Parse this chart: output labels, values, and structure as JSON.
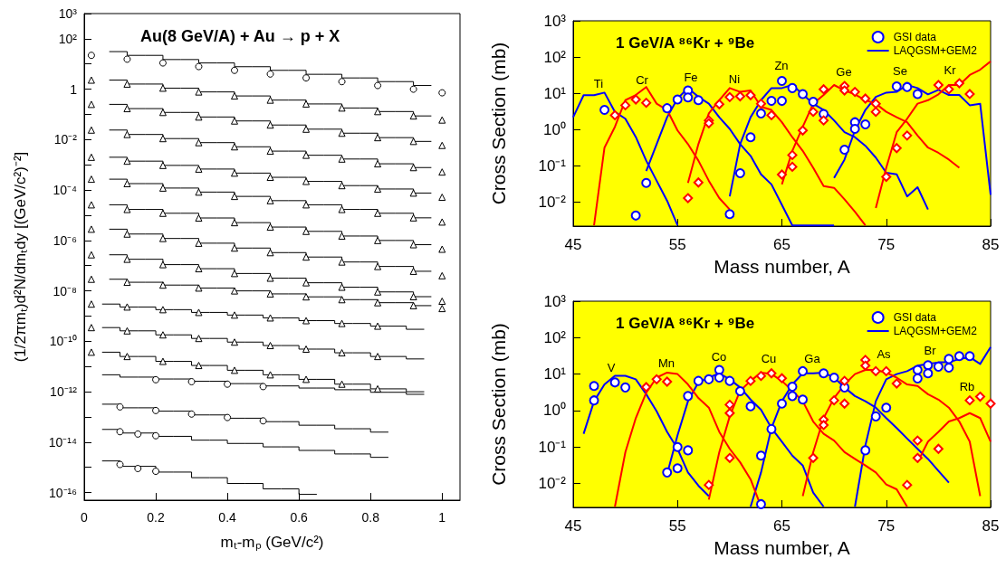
{
  "chart_data": [
    {
      "type": "scatter",
      "title": "Au(8 GeV/A) + Au → p + X",
      "xlabel": "mₜ-mₚ (GeV/c²)",
      "ylabel": "(1/2πmₜ)d²N/dmₜdy [(GeV/c²)⁻²]",
      "log": "y",
      "grid": false,
      "legend": false,
      "xlim": [
        0,
        1.05
      ],
      "xticks": [
        0,
        0.2,
        0.4,
        0.6,
        0.8,
        1
      ],
      "ylim": [
        5e-17,
        1000
      ],
      "yticks": [
        {
          "value": 1000,
          "label": "10³"
        },
        {
          "value": 100,
          "label": "10²"
        },
        {
          "value": 10,
          "label": null
        },
        {
          "value": 1,
          "label": "1"
        },
        {
          "value": 0.1,
          "label": null
        },
        {
          "value": 0.01,
          "label": "10⁻²"
        },
        {
          "value": 0.001,
          "label": null
        },
        {
          "value": 0.0001,
          "label": "10⁻⁴"
        },
        {
          "value": 1e-05,
          "label": null
        },
        {
          "value": 1e-06,
          "label": "10⁻⁶"
        },
        {
          "value": 1e-07,
          "label": null
        },
        {
          "value": 1e-08,
          "label": "10⁻⁸"
        },
        {
          "value": 1e-09,
          "label": null
        },
        {
          "value": 1e-10,
          "label": "10⁻¹⁰"
        },
        {
          "value": 1e-11,
          "label": null
        },
        {
          "value": 1e-12,
          "label": "10⁻¹²"
        },
        {
          "value": 1e-13,
          "label": null
        },
        {
          "value": 1e-14,
          "label": "10⁻¹⁴"
        },
        {
          "value": 1e-15,
          "label": null
        },
        {
          "value": 1e-16,
          "label": "10⁻¹⁶"
        }
      ],
      "x": [
        0.02,
        0.12,
        0.22,
        0.32,
        0.42,
        0.52,
        0.62,
        0.72,
        0.82,
        0.92,
        1.0
      ],
      "series": [
        {
          "marker": "circle",
          "color": "#000000",
          "values": [
            22,
            15.5,
            11,
            7.9,
            5.6,
            4,
            2.8,
            2,
            1.4,
            1,
            0.72
          ]
        },
        {
          "marker": "triangle",
          "color": "#000000",
          "values": [
            2.3,
            1.6,
            1.1,
            0.78,
            0.54,
            0.37,
            0.26,
            0.18,
            0.13,
            0.087,
            0.06
          ]
        },
        {
          "marker": "triangle",
          "color": "#000000",
          "values": [
            0.25,
            0.17,
            0.12,
            0.079,
            0.055,
            0.038,
            0.026,
            0.018,
            0.012,
            0.0085,
            0.0059
          ]
        },
        {
          "marker": "triangle",
          "color": "#000000",
          "values": [
            0.024,
            0.016,
            0.011,
            0.0076,
            0.0052,
            0.0035,
            0.0024,
            0.0017,
            0.0011,
            0.00078,
            0.00052
          ]
        },
        {
          "marker": "triangle",
          "color": "#000000",
          "values": [
            0.002,
            0.0014,
            0.00095,
            0.00068,
            0.00047,
            0.00032,
            0.00022,
            0.00015,
            0.00011,
            7.6e-05,
            5.2e-05
          ]
        },
        {
          "marker": "triangle",
          "color": "#000000",
          "values": [
            0.00027,
            0.00018,
            0.00012,
            8.3e-05,
            5.6e-05,
            3.8e-05,
            2.6e-05,
            1.7e-05,
            1.2e-05,
            7.9e-06,
            5.4e-06
          ]
        },
        {
          "marker": "triangle",
          "color": "#000000",
          "values": [
            2.6e-05,
            1.7e-05,
            1.2e-05,
            7.8e-06,
            5.1e-06,
            3.4e-06,
            2.3e-06,
            1.5e-06,
            1e-06,
            6.8e-07,
            4.5e-07
          ]
        },
        {
          "marker": "triangle",
          "color": "#000000",
          "values": [
            2.8e-06,
            1.8e-06,
            1.2e-06,
            7.8e-07,
            5e-07,
            3.3e-07,
            2.2e-07,
            1.4e-07,
            9.3e-08,
            6e-08,
            4e-08
          ]
        },
        {
          "marker": "triangle",
          "color": "#000000",
          "values": [
            2.7e-07,
            1.8e-07,
            1.1e-07,
            7.6e-08,
            4.9e-08,
            3.2e-08,
            2.1e-08,
            1.4e-08,
            9.1e-09,
            5.9e-09,
            3.9e-09
          ]
        },
        {
          "marker": "triangle",
          "color": "#000000",
          "values": [
            2.9e-08,
            2.2e-08,
            1.7e-08,
            1.3e-08,
            1e-08,
            7.6e-09,
            5.8e-09,
            4.5e-09,
            3.4e-09,
            2.6e-09,
            2e-09
          ]
        },
        {
          "marker": "triangle",
          "color": "#000000",
          "x": [
            0.02,
            0.12,
            0.22,
            0.32,
            0.42,
            0.52,
            0.62,
            0.72,
            0.82
          ],
          "values": [
            3e-09,
            2.3e-09,
            1.8e-09,
            1.4e-09,
            1.1e-09,
            8.5e-10,
            6.6e-10,
            5.1e-10,
            4e-10
          ]
        },
        {
          "marker": "triangle",
          "color": "#000000",
          "x": [
            0.02,
            0.12,
            0.22,
            0.32,
            0.42,
            0.52,
            0.62,
            0.72,
            0.82
          ],
          "values": [
            3.5e-10,
            2.6e-10,
            1.8e-10,
            1.3e-10,
            9.3e-11,
            6.8e-11,
            4.9e-11,
            3.5e-11,
            2.5e-11
          ]
        },
        {
          "marker": "triangle",
          "color": "#000000",
          "x": [
            0.02,
            0.12,
            0.22,
            0.32,
            0.42,
            0.52,
            0.62,
            0.72,
            0.82
          ],
          "values": [
            3.7e-11,
            2.5e-11,
            1.6e-11,
            1.1e-11,
            7.1e-12,
            4.7e-12,
            3.1e-12,
            2e-12,
            1.3e-12
          ]
        },
        {
          "marker": "circle",
          "color": "#000000",
          "x": [
            0.2,
            0.3,
            0.4,
            0.5
          ],
          "values": [
            3e-12,
            2.5e-12,
            2e-12,
            1.6e-12
          ]
        },
        {
          "marker": "circle",
          "color": "#000000",
          "x": [
            0.1,
            0.2,
            0.3,
            0.4,
            0.5
          ],
          "values": [
            2.5e-13,
            1.8e-13,
            1.3e-13,
            9.5e-14,
            7e-14
          ]
        },
        {
          "marker": "circle",
          "color": "#000000",
          "x": [
            0.1,
            0.15,
            0.2
          ],
          "values": [
            2.6e-14,
            2.1e-14,
            1.8e-14
          ]
        },
        {
          "marker": "circle",
          "color": "#000000",
          "x": [
            0.1,
            0.15,
            0.2
          ],
          "values": [
            1.3e-15,
            9e-16,
            7e-16
          ]
        },
        {
          "type": "step",
          "color": "#000000",
          "x": [
            0.07,
            0.17,
            0.27,
            0.37,
            0.47,
            0.57,
            0.67,
            0.77,
            0.87,
            0.97
          ],
          "values": [
            31,
            22,
            15,
            11,
            7.8,
            5.6,
            3.9,
            2.8,
            2,
            1.4
          ]
        },
        {
          "type": "step",
          "color": "#000000",
          "x": [
            0.07,
            0.17,
            0.27,
            0.37,
            0.47,
            0.57,
            0.67,
            0.77,
            0.87,
            0.97
          ],
          "values": [
            2.3,
            1.6,
            1.1,
            0.78,
            0.54,
            0.37,
            0.26,
            0.18,
            0.13,
            0.087
          ]
        },
        {
          "type": "step",
          "color": "#000000",
          "x": [
            0.07,
            0.17,
            0.27,
            0.37,
            0.47,
            0.57,
            0.67,
            0.77,
            0.87,
            0.97
          ],
          "values": [
            0.25,
            0.17,
            0.12,
            0.079,
            0.055,
            0.038,
            0.026,
            0.018,
            0.012,
            0.0085
          ]
        },
        {
          "type": "step",
          "color": "#000000",
          "x": [
            0.07,
            0.17,
            0.27,
            0.37,
            0.47,
            0.57,
            0.67,
            0.77,
            0.87,
            0.97
          ],
          "values": [
            0.024,
            0.016,
            0.011,
            0.0076,
            0.0052,
            0.0035,
            0.0024,
            0.0017,
            0.0011,
            0.00078
          ]
        },
        {
          "type": "step",
          "color": "#000000",
          "x": [
            0.07,
            0.17,
            0.27,
            0.37,
            0.47,
            0.57,
            0.67,
            0.77,
            0.87,
            0.97
          ],
          "values": [
            0.002,
            0.0014,
            0.00095,
            0.00068,
            0.00047,
            0.00032,
            0.00022,
            0.00015,
            0.00011,
            7.6e-05
          ]
        },
        {
          "type": "step",
          "color": "#000000",
          "x": [
            0.07,
            0.17,
            0.27,
            0.37,
            0.47,
            0.57,
            0.67,
            0.77,
            0.87,
            0.97
          ],
          "values": [
            0.00027,
            0.00018,
            0.00012,
            8.3e-05,
            5.6e-05,
            3.8e-05,
            2.6e-05,
            1.7e-05,
            1.2e-05,
            7.9e-06
          ]
        },
        {
          "type": "step",
          "color": "#000000",
          "x": [
            0.07,
            0.17,
            0.27,
            0.37,
            0.47,
            0.57,
            0.67,
            0.77,
            0.87,
            0.97
          ],
          "values": [
            2.6e-05,
            1.7e-05,
            1.2e-05,
            7.8e-06,
            5.1e-06,
            3.4e-06,
            2.3e-06,
            1.5e-06,
            1e-06,
            6.8e-07
          ]
        },
        {
          "type": "step",
          "color": "#000000",
          "x": [
            0.07,
            0.17,
            0.27,
            0.37,
            0.47,
            0.57,
            0.67,
            0.77,
            0.87,
            0.97
          ],
          "values": [
            2.8e-06,
            1.8e-06,
            1.2e-06,
            7.8e-07,
            5e-07,
            3.3e-07,
            2.2e-07,
            1.4e-07,
            9.3e-08,
            6e-08
          ]
        },
        {
          "type": "step",
          "color": "#000000",
          "x": [
            0.07,
            0.17,
            0.27,
            0.37,
            0.47,
            0.57,
            0.67,
            0.77,
            0.87,
            0.97
          ],
          "values": [
            2.7e-07,
            1.8e-07,
            1.1e-07,
            7.6e-08,
            4.9e-08,
            3.2e-08,
            2.1e-08,
            1.4e-08,
            9.1e-09,
            5.9e-09
          ]
        },
        {
          "type": "step",
          "color": "#000000",
          "x": [
            0.07,
            0.17,
            0.27,
            0.37,
            0.47,
            0.57,
            0.67,
            0.77,
            0.87,
            0.97
          ],
          "values": [
            2.9e-08,
            2.2e-08,
            1.7e-08,
            1.3e-08,
            1e-08,
            7.6e-09,
            5.8e-09,
            4.5e-09,
            3.4e-09,
            2.6e-09
          ]
        },
        {
          "type": "step",
          "color": "#000000",
          "x": [
            0.05,
            0.15,
            0.25,
            0.35,
            0.45,
            0.55,
            0.65,
            0.75,
            0.85,
            0.95
          ],
          "values": [
            3e-09,
            2.3e-09,
            1.8e-09,
            1.4e-09,
            1.1e-09,
            8.5e-10,
            6.6e-10,
            5.1e-10,
            4e-10,
            3e-10
          ]
        },
        {
          "type": "step",
          "color": "#000000",
          "x": [
            0.05,
            0.15,
            0.25,
            0.35,
            0.45,
            0.55,
            0.65,
            0.75,
            0.85,
            0.95
          ],
          "values": [
            3.5e-10,
            2.6e-10,
            1.8e-10,
            1.3e-10,
            9.3e-11,
            6.8e-11,
            4.9e-11,
            3.5e-11,
            2.5e-11,
            2e-11
          ]
        },
        {
          "type": "step",
          "color": "#000000",
          "x": [
            0.05,
            0.15,
            0.25,
            0.35,
            0.45,
            0.55,
            0.65,
            0.75,
            0.85,
            0.95
          ],
          "values": [
            3.7e-11,
            2.5e-11,
            1.6e-11,
            1.1e-11,
            7.1e-12,
            4.7e-12,
            3.1e-12,
            2e-12,
            1.3e-12,
            1e-12
          ]
        },
        {
          "type": "step",
          "color": "#000000",
          "x": [
            0.05,
            0.15,
            0.25,
            0.35,
            0.45,
            0.55,
            0.65,
            0.75,
            0.85,
            0.95
          ],
          "values": [
            4.7e-12,
            3.8e-12,
            3.2e-12,
            2.6e-12,
            2.1e-12,
            1.7e-12,
            1.4e-12,
            1.2e-12,
            9.5e-13,
            7.9e-13
          ]
        },
        {
          "type": "step",
          "color": "#000000",
          "x": [
            0.05,
            0.15,
            0.25,
            0.35,
            0.45,
            0.55,
            0.65,
            0.75,
            0.85
          ],
          "values": [
            3.2e-13,
            2.3e-13,
            1.7e-13,
            1.2e-13,
            8.9e-14,
            6.5e-14,
            4.7e-14,
            3.4e-14,
            2.5e-14
          ]
        },
        {
          "type": "step",
          "color": "#000000",
          "x": [
            0.05,
            0.15,
            0.25,
            0.35,
            0.45,
            0.55,
            0.65,
            0.75,
            0.85
          ],
          "values": [
            3.2e-14,
            2.3e-14,
            1.7e-14,
            1.2e-14,
            8.9e-15,
            6.5e-15,
            4.7e-15,
            3.4e-15,
            2.5e-15
          ]
        },
        {
          "type": "step",
          "color": "#000000",
          "x": [
            0.05,
            0.15,
            0.25,
            0.35,
            0.45,
            0.55,
            0.65
          ],
          "values": [
            1.8e-15,
            1.1e-15,
            6.5e-16,
            3.9e-16,
            2.3e-16,
            1.4e-16,
            8.5e-17
          ]
        }
      ]
    },
    {
      "type": "line",
      "title": "1 GeV/A ⁸⁶Kr + ⁹Be",
      "xlabel": "Mass number, A",
      "ylabel": "Cross Section (mb)",
      "log": "y",
      "grid": false,
      "legend": "top right",
      "xlim": [
        45,
        85
      ],
      "xticks": [
        45,
        55,
        65,
        75,
        85
      ],
      "ylim": [
        0.0022,
        1000
      ],
      "yticks": [
        {
          "value": 0.01,
          "label": "10⁻²"
        },
        {
          "value": 0.1,
          "label": "10⁻¹"
        },
        {
          "value": 1,
          "label": "10⁰"
        },
        {
          "value": 10,
          "label": "10¹"
        },
        {
          "value": 100,
          "label": "10²"
        },
        {
          "value": 1000,
          "label": "10³"
        }
      ],
      "annotations": [
        "Ti",
        "Cr",
        "Fe",
        "Ni",
        "Zn",
        "Ge",
        "Se",
        "Kr"
      ],
      "series": [
        {
          "type": "scatter",
          "name": "GSI data",
          "marker": "circle",
          "color": "#0000ff",
          "x": [
            48,
            51,
            52,
            54,
            55,
            56,
            56,
            57,
            60,
            61,
            62,
            63,
            64,
            65,
            65,
            66,
            67,
            68,
            69,
            71,
            72,
            72,
            73,
            76,
            77,
            78
          ],
          "values": [
            3.5,
            0.0043,
            0.034,
            3.9,
            6.8,
            12,
            7.7,
            6.5,
            0.0047,
            0.063,
            0.62,
            2.8,
            6.2,
            6.2,
            22,
            14,
            9.6,
            5.9,
            2.7,
            0.28,
            1.6,
            1.05,
            1.4,
            15.5,
            15,
            9.6
          ]
        },
        {
          "name": "LAQGSM+GEM2",
          "color": "#0000ff",
          "x": [
            45,
            46,
            47,
            48,
            49,
            50,
            51,
            52,
            53,
            54,
            55
          ],
          "values": [
            2.2,
            8.9,
            8.9,
            10.5,
            3.1,
            2.0,
            0.63,
            0.14,
            0.039,
            0.011,
            0.0023
          ]
        },
        {
          "color": "#0000ff",
          "x": [
            52,
            53,
            54,
            55,
            56,
            57,
            58,
            59,
            60,
            61,
            62,
            63,
            64,
            65,
            66,
            70
          ],
          "values": [
            0.072,
            0.4,
            2.2,
            7.2,
            14,
            8,
            5.2,
            2.2,
            1.05,
            0.4,
            0.19,
            0.059,
            0.031,
            0.0085,
            0.0023,
            0.0023
          ]
        },
        {
          "color": "#0000ff",
          "x": [
            60,
            61,
            62,
            63,
            64,
            65,
            66,
            67,
            68,
            69,
            70,
            71,
            72,
            73,
            74,
            75,
            76,
            77,
            78,
            79
          ],
          "values": [
            0.0145,
            0.4,
            2.2,
            6.5,
            14,
            14,
            17,
            9.4,
            5.2,
            3.5,
            1.8,
            0.85,
            0.62,
            0.36,
            0.17,
            0.065,
            0.059,
            0.0145,
            0.026,
            0.0063
          ]
        },
        {
          "color": "#0000ff",
          "x": [
            70,
            71,
            72,
            73,
            74,
            75,
            76,
            77,
            78,
            79,
            80,
            81,
            82,
            83,
            84,
            85
          ],
          "values": [
            0.047,
            0.15,
            0.95,
            3.5,
            8,
            10.5,
            11,
            17,
            14,
            9.4,
            12.5,
            9,
            9,
            4.7,
            5.2,
            0.016
          ]
        },
        {
          "color": "#ff0000",
          "x": [
            47,
            48,
            49,
            50,
            51,
            52,
            53,
            54,
            55,
            56,
            57,
            58,
            59,
            60
          ],
          "values": [
            0.0023,
            0.32,
            1.2,
            6.5,
            9,
            15,
            5.2,
            3.5,
            0.95,
            0.4,
            0.14,
            0.039,
            0.013,
            0.0063
          ]
        },
        {
          "color": "#ff0000",
          "x": [
            56,
            57,
            58,
            59,
            60,
            61,
            62,
            63,
            64,
            65,
            66,
            67,
            68,
            69,
            70,
            71,
            72,
            73
          ],
          "values": [
            0.034,
            0.4,
            2.8,
            6.5,
            14,
            11,
            12,
            4.3,
            3.5,
            1.6,
            0.62,
            0.26,
            0.089,
            0.028,
            0.025,
            0.012,
            0.0055,
            0.0023
          ]
        },
        {
          "color": "#ff0000",
          "x": [
            65,
            66,
            67,
            68,
            69,
            70,
            71,
            72,
            73,
            74,
            75,
            76,
            77,
            78,
            79,
            80,
            81,
            82
          ],
          "values": [
            0.031,
            0.26,
            1.2,
            5.2,
            9,
            17,
            12,
            9.4,
            6.5,
            5.2,
            3.1,
            2.2,
            1.6,
            0.69,
            0.32,
            0.23,
            0.15,
            0.089
          ]
        },
        {
          "color": "#ff0000",
          "x": [
            74,
            75,
            76,
            77,
            78,
            79,
            80,
            81,
            82,
            83,
            84,
            85
          ],
          "values": [
            0.0069,
            0.089,
            0.85,
            2.0,
            5.2,
            6.5,
            9.4,
            17,
            17,
            32,
            45,
            76
          ]
        },
        {
          "type": "scatter",
          "marker": "diamond",
          "color": "#ff0000",
          "x": [
            49,
            50,
            51,
            52,
            56,
            57,
            58,
            58,
            59,
            60,
            61,
            62,
            63,
            64,
            65,
            66,
            66,
            67,
            68,
            69,
            69,
            71,
            71,
            72,
            73,
            74,
            74,
            75,
            76,
            77,
            80,
            81,
            82,
            83
          ],
          "values": [
            2.5,
            4.7,
            6.8,
            5.5,
            0.013,
            0.035,
            1.8,
            1.5,
            5.0,
            7.9,
            8.3,
            8.9,
            5.2,
            2.5,
            0.058,
            0.2,
            0.095,
            0.95,
            3.1,
            13,
            1.8,
            16,
            12,
            11,
            7.2,
            5.2,
            3.1,
            0.05,
            0.31,
            0.69,
            17,
            13,
            19,
            9.6
          ]
        }
      ]
    },
    {
      "type": "line",
      "title": "1 GeV/A ⁸⁶Kr + ⁹Be",
      "xlabel": "Mass number, A",
      "ylabel": "Cross Section (mb)",
      "log": "y",
      "grid": false,
      "legend": "top right",
      "xlim": [
        45,
        85
      ],
      "xticks": [
        45,
        55,
        65,
        75,
        85
      ],
      "ylim": [
        0.0022,
        1000
      ],
      "yticks": [
        {
          "value": 0.01,
          "label": "10⁻²"
        },
        {
          "value": 0.1,
          "label": "10⁻¹"
        },
        {
          "value": 1,
          "label": "10⁰"
        },
        {
          "value": 10,
          "label": "10¹"
        },
        {
          "value": 100,
          "label": "10²"
        },
        {
          "value": 1000,
          "label": "10³"
        }
      ],
      "annotations": [
        "V",
        "Mn",
        "Co",
        "Cu",
        "Ga",
        "As",
        "Br",
        "Rb"
      ],
      "series": [
        {
          "type": "scatter",
          "name": "GSI data",
          "marker": "circle",
          "color": "#0000ff",
          "x": [
            47,
            47,
            49,
            50,
            54,
            55,
            55,
            56,
            56,
            57,
            58,
            59,
            59,
            60,
            61,
            62,
            63,
            63,
            64,
            65,
            66,
            66,
            67,
            67,
            69,
            70,
            71,
            73,
            74,
            75,
            78,
            78,
            79,
            79,
            80,
            81,
            81,
            82,
            83
          ],
          "values": [
            4.7,
            1.9,
            5.9,
            4.3,
            0.02,
            0.1,
            0.026,
            0.081,
            2.5,
            6.5,
            7.2,
            13,
            8,
            6.5,
            3.4,
            1.3,
            0.0027,
            0.058,
            0.31,
            1.55,
            4.5,
            2.5,
            12,
            2.0,
            10.5,
            8,
            4.3,
            0.081,
            0.69,
            1.2,
            13,
            7.6,
            17.5,
            10.5,
            16,
            26,
            15,
            31,
            31
          ]
        },
        {
          "name": "LAQGSM+GEM2",
          "color": "#0000ff",
          "x": [
            46,
            47,
            48,
            49,
            50,
            51,
            52,
            53,
            54,
            55,
            56,
            57,
            58
          ],
          "values": [
            0.23,
            1.8,
            5.2,
            9,
            9,
            7.2,
            2.8,
            0.95,
            0.26,
            0.089,
            0.02,
            0.0087,
            0.0045
          ]
        },
        {
          "color": "#0000ff",
          "x": [
            54,
            55,
            56,
            57,
            58,
            59,
            60,
            61,
            62,
            63,
            64,
            65,
            66,
            67,
            68,
            69
          ],
          "values": [
            0.018,
            0.21,
            1.8,
            5.9,
            8,
            10.5,
            7.2,
            4.3,
            2.0,
            1.05,
            0.33,
            0.14,
            0.058,
            0.031,
            0.0056,
            0.0023
          ]
        },
        {
          "color": "#0000ff",
          "x": [
            62,
            63,
            64,
            65,
            66,
            67,
            68,
            69,
            70,
            71,
            72,
            73,
            74,
            75,
            76,
            77,
            78,
            79,
            80,
            81
          ],
          "values": [
            0.0023,
            0.02,
            0.33,
            1.8,
            5.2,
            10.5,
            10.5,
            11,
            8,
            4.3,
            2.5,
            1.8,
            1.2,
            0.62,
            0.33,
            0.17,
            0.089,
            0.047,
            0.022,
            0.0105
          ]
        },
        {
          "color": "#0000ff",
          "x": [
            72,
            73,
            74,
            75,
            76,
            77,
            78,
            79,
            80,
            81,
            82,
            83,
            84,
            85
          ],
          "values": [
            0.0023,
            0.11,
            1.8,
            7.2,
            10,
            12,
            17,
            19,
            21,
            21,
            26,
            29,
            19,
            55
          ]
        },
        {
          "color": "#ff0000",
          "x": [
            49,
            50,
            51,
            52,
            53,
            54,
            55,
            56,
            57,
            58,
            59,
            60,
            61,
            62,
            63
          ],
          "values": [
            0.0023,
            0.072,
            0.62,
            3.1,
            8,
            11,
            10,
            5.2,
            2.2,
            1.2,
            0.26,
            0.089,
            0.038,
            0.013,
            0.0023
          ]
        },
        {
          "color": "#ff0000",
          "x": [
            58,
            59,
            60,
            61,
            62,
            63,
            64,
            65,
            66,
            67,
            68,
            69,
            70,
            71,
            72,
            73,
            74,
            75,
            76,
            77
          ],
          "values": [
            0.0036,
            0.072,
            0.69,
            3.5,
            6.5,
            11,
            10,
            6.5,
            3.5,
            1.8,
            0.5,
            0.23,
            0.15,
            0.072,
            0.047,
            0.031,
            0.02,
            0.0094,
            0.0069,
            0.0023
          ]
        },
        {
          "color": "#ff0000",
          "x": [
            67,
            68,
            69,
            70,
            71,
            72,
            73,
            74,
            75,
            76,
            77,
            78,
            79,
            80,
            81,
            82,
            83,
            84
          ],
          "values": [
            0.0045,
            0.072,
            0.62,
            2.2,
            5.2,
            10,
            13,
            13,
            11,
            8,
            5.2,
            4.7,
            2.8,
            2.0,
            1.2,
            0.5,
            0.14,
            0.0045
          ]
        },
        {
          "color": "#ff0000",
          "x": [
            78,
            79,
            80,
            81,
            82,
            83,
            84,
            85
          ],
          "values": [
            0.038,
            0.14,
            0.26,
            0.5,
            0.62,
            0.85,
            0.62,
            0.14
          ]
        },
        {
          "type": "scatter",
          "marker": "diamond",
          "color": "#ff0000",
          "x": [
            52,
            53,
            54,
            58,
            60,
            60,
            60,
            62,
            63,
            64,
            65,
            68,
            69,
            69,
            70,
            71,
            71,
            73,
            73,
            74,
            75,
            76,
            77,
            78,
            78,
            80,
            83,
            84,
            85
          ],
          "values": [
            4.4,
            7.2,
            6.2,
            0.0091,
            1.45,
            0.85,
            0.05,
            6.5,
            8.9,
            10.5,
            7.7,
            0.05,
            0.56,
            0.4,
            1.9,
            1.55,
            6.5,
            24.5,
            17,
            12,
            12,
            5.5,
            0.0091,
            0.05,
            0.15,
            0.089,
            1.9,
            2.4,
            1.55
          ]
        }
      ]
    }
  ]
}
